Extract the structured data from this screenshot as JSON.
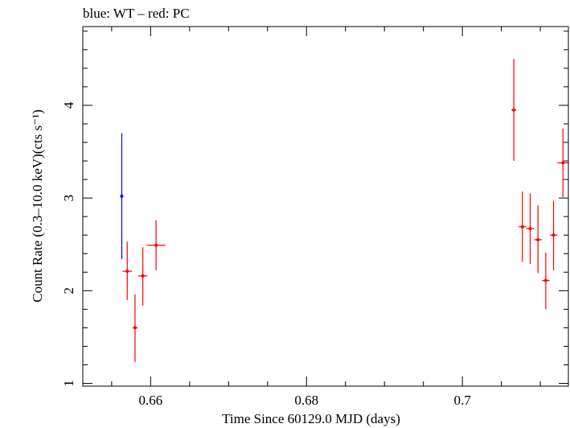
{
  "chart_data": {
    "type": "scatter",
    "title": "blue: WT – red: PC",
    "xlabel": "Time Since 60129.0 MJD (days)",
    "ylabel": "Count Rate (0.3–10.0 keV)(cts s⁻¹)",
    "xlim": [
      0.6513,
      0.7136
    ],
    "ylim": [
      0.97,
      4.85
    ],
    "xticks": [
      "0.66",
      "0.68",
      "0.7"
    ],
    "xtick_values": [
      0.66,
      0.68,
      0.7
    ],
    "yticks": [
      "1",
      "2",
      "3",
      "4"
    ],
    "ytick_values": [
      1,
      2,
      3,
      4
    ],
    "grid": false,
    "series": [
      {
        "color": "#0000ff",
        "points": [
          {
            "x": 0.6563,
            "xerr": 0.0001,
            "y": 3.02,
            "ylo": 2.34,
            "yhi": 3.7
          }
        ]
      },
      {
        "color": "#ff0000",
        "points": [
          {
            "x": 0.657,
            "xerr": 0.0006,
            "y": 2.21,
            "ylo": 1.9,
            "yhi": 2.53
          },
          {
            "x": 0.658,
            "xerr": 0.0003,
            "y": 1.6,
            "ylo": 1.23,
            "yhi": 1.96
          },
          {
            "x": 0.659,
            "xerr": 0.0006,
            "y": 2.16,
            "ylo": 1.84,
            "yhi": 2.47
          },
          {
            "x": 0.6607,
            "xerr": 0.0012,
            "y": 2.49,
            "ylo": 2.22,
            "yhi": 2.76
          },
          {
            "x": 0.7066,
            "xerr": 0.0003,
            "y": 3.95,
            "ylo": 3.4,
            "yhi": 4.5
          },
          {
            "x": 0.7077,
            "xerr": 0.0005,
            "y": 2.69,
            "ylo": 2.31,
            "yhi": 3.07
          },
          {
            "x": 0.7087,
            "xerr": 0.0005,
            "y": 2.67,
            "ylo": 2.29,
            "yhi": 3.05
          },
          {
            "x": 0.7097,
            "xerr": 0.0005,
            "y": 2.55,
            "ylo": 2.19,
            "yhi": 2.92
          },
          {
            "x": 0.7107,
            "xerr": 0.0005,
            "y": 2.11,
            "ylo": 1.8,
            "yhi": 2.41
          },
          {
            "x": 0.7117,
            "xerr": 0.0005,
            "y": 2.6,
            "ylo": 2.22,
            "yhi": 2.97
          },
          {
            "x": 0.7129,
            "xerr": 0.0007,
            "y": 3.38,
            "ylo": 3.01,
            "yhi": 3.75
          }
        ]
      }
    ]
  }
}
